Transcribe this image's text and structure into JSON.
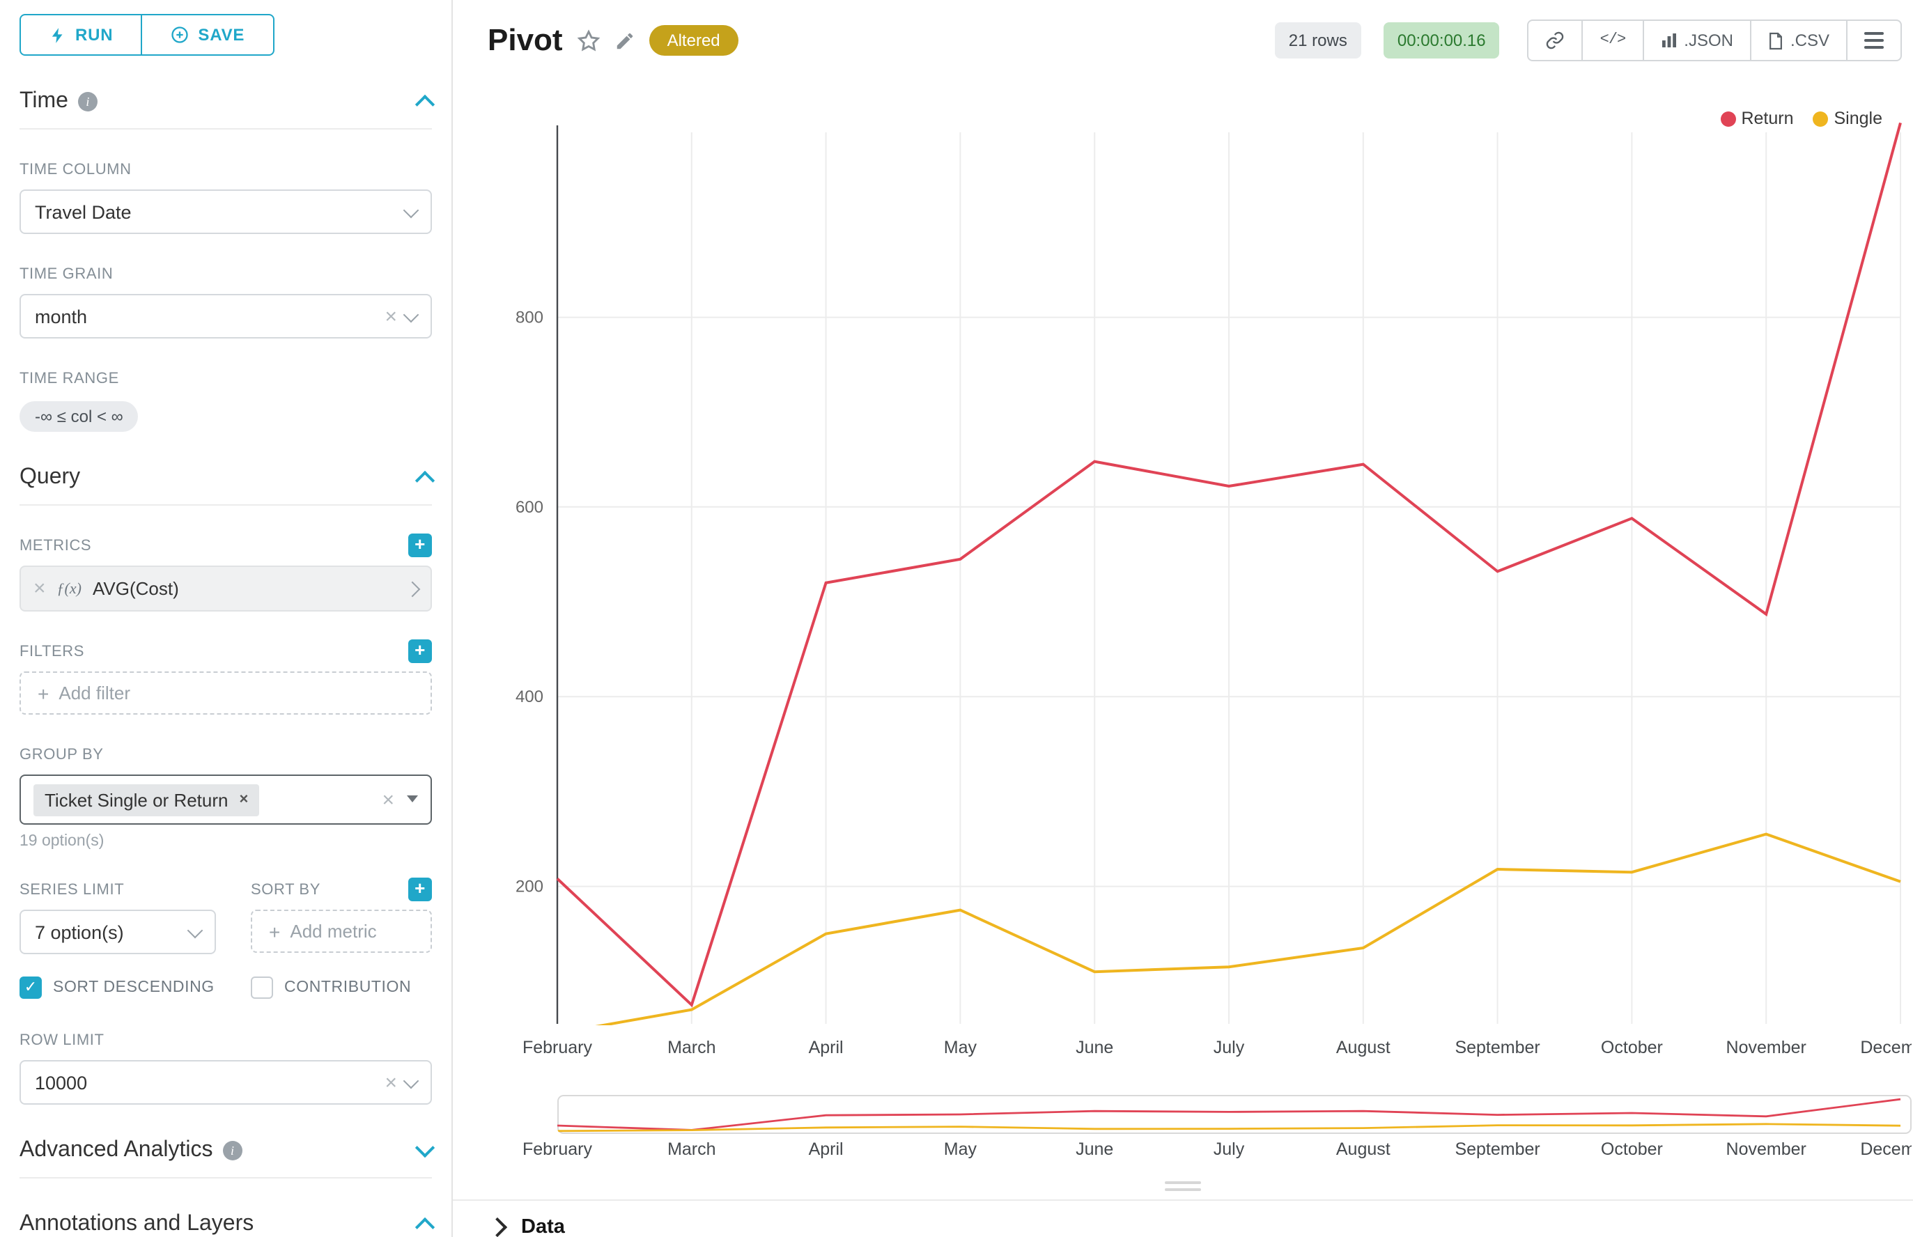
{
  "colors": {
    "accent": "#20a7c9",
    "altered_badge_bg": "#c5a21b",
    "timer_badge_bg": "#c4e4c6",
    "timer_badge_text": "#2b7a2f",
    "return_series": "#e04355",
    "single_series": "#efb51f"
  },
  "toolbar": {
    "run": "RUN",
    "save": "SAVE"
  },
  "panel": {
    "time": {
      "title": "Time",
      "time_column_label": "TIME COLUMN",
      "time_column_value": "Travel Date",
      "time_grain_label": "TIME GRAIN",
      "time_grain_value": "month",
      "time_range_label": "TIME RANGE",
      "time_range_value": "-∞ ≤ col < ∞"
    },
    "query": {
      "title": "Query",
      "metrics_label": "METRICS",
      "metric_fx": "ƒ(x)",
      "metric_value": "AVG(Cost)",
      "filters_label": "FILTERS",
      "add_filter": "Add filter",
      "group_by_label": "GROUP BY",
      "group_by_tag": "Ticket Single or Return",
      "group_by_hint": "19 option(s)",
      "series_limit_label": "SERIES LIMIT",
      "series_limit_value": "7 option(s)",
      "sort_by_label": "SORT BY",
      "add_metric": "Add metric",
      "sort_descending_label": "SORT DESCENDING",
      "sort_descending_checked": true,
      "contribution_label": "CONTRIBUTION",
      "contribution_checked": false,
      "row_limit_label": "ROW LIMIT",
      "row_limit_value": "10000"
    },
    "advanced_title": "Advanced Analytics",
    "annotations_title": "Annotations and Layers"
  },
  "header": {
    "title": "Pivot",
    "altered": "Altered",
    "rows": "21 rows",
    "timer": "00:00:00.16",
    "code": "</>",
    "json": ".JSON",
    "csv": ".CSV"
  },
  "data_panel": {
    "label": "Data"
  },
  "chart_data": {
    "type": "line",
    "title": "Pivot",
    "categories": [
      "February",
      "March",
      "April",
      "May",
      "June",
      "July",
      "August",
      "September",
      "October",
      "November",
      "December"
    ],
    "series": [
      {
        "name": "Return",
        "color": "#e04355",
        "values": [
          208,
          75,
          520,
          545,
          648,
          622,
          645,
          532,
          588,
          487,
          1005
        ]
      },
      {
        "name": "Single",
        "color": "#efb51f",
        "values": [
          45,
          70,
          150,
          175,
          110,
          115,
          135,
          218,
          215,
          255,
          205
        ]
      }
    ],
    "yticks": [
      200,
      400,
      600,
      800
    ],
    "ylim": [
      55,
      995
    ],
    "xlabel": "",
    "ylabel": "",
    "grid": true,
    "legend_position": "top-right",
    "has_brush_minimap": true
  }
}
